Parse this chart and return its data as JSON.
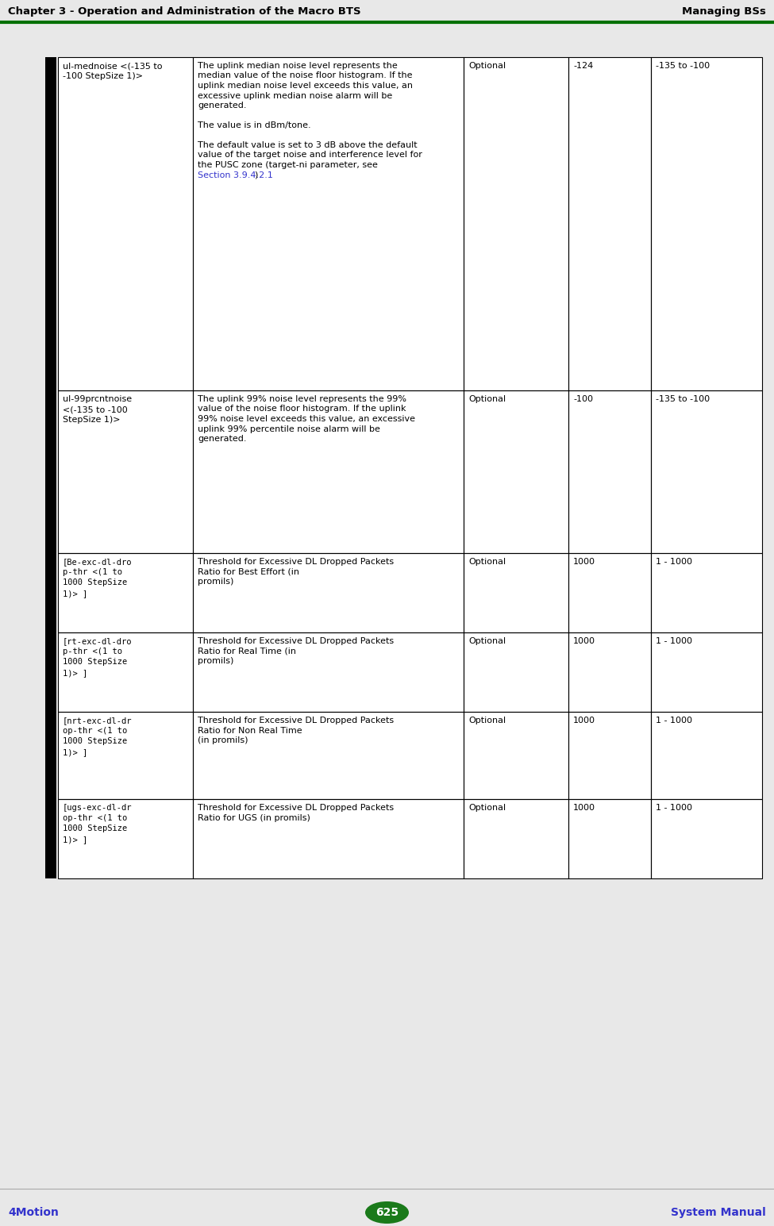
{
  "header_left": "Chapter 3 - Operation and Administration of the Macro BTS",
  "header_right": "Managing BSs",
  "header_line_color": "#007000",
  "footer_left": "4Motion",
  "footer_center": "625",
  "footer_right": "System Manual",
  "footer_circle_color": "#1a7a1a",
  "footer_text_color": "#3333cc",
  "page_bg": "#e8e8e8",
  "table_bg": "#ffffff",
  "rows": [
    {
      "col0": "ul-mednoise <(-135 to\n-100 StepSize 1)>",
      "col0_mono": false,
      "col1_segments": [
        {
          "text": "The uplink median noise level represents the\nmedian value of the noise floor histogram. If the\nuplink median noise level exceeds this value, an\nexcessive uplink median noise alarm will be\ngenerated.",
          "bold": false,
          "color": "#000000"
        },
        {
          "text": "\n\n",
          "bold": false,
          "color": "#000000"
        },
        {
          "text": "The value is in dBm/tone.",
          "bold": false,
          "color": "#000000"
        },
        {
          "text": "\n\n",
          "bold": false,
          "color": "#000000"
        },
        {
          "text": "The default value is set to 3 dB above the default\nvalue of the target noise and interference level for\nthe PUSC zone (target-ni parameter, see\n",
          "bold": false,
          "color": "#000000"
        },
        {
          "text": "Section 3.9.4.2.1",
          "bold": false,
          "color": "#3333cc"
        },
        {
          "text": ")",
          "bold": false,
          "color": "#000000"
        }
      ],
      "col2": "Optional",
      "col3": "-124",
      "col4": "-135 to -100"
    },
    {
      "col0": "ul-99prcntnoise\n<(-135 to -100\nStepSize 1)>",
      "col0_mono": false,
      "col1_segments": [
        {
          "text": "The uplink 99% noise level represents the 99%\nvalue of the noise floor histogram. If the uplink\n99% noise level exceeds this value, an excessive\nuplink 99% percentile noise alarm will be\ngenerated.",
          "bold": false,
          "color": "#000000"
        }
      ],
      "col2": "Optional",
      "col3": "-100",
      "col4": "-135 to -100"
    },
    {
      "col0": "[Be-exc-dl-dro\np-thr <(1 to\n1000 StepSize\n1)> ]",
      "col0_mono": true,
      "col1_segments": [
        {
          "text": "Threshold for Excessive DL Dropped Packets\nRatio for Best Effort (in\npromils)",
          "bold": false,
          "color": "#000000"
        }
      ],
      "col2": "Optional",
      "col3": "1000",
      "col4": "1 - 1000"
    },
    {
      "col0": "[rt-exc-dl-dro\np-thr <(1 to\n1000 StepSize\n1)> ]",
      "col0_mono": true,
      "col1_segments": [
        {
          "text": "Threshold for Excessive DL Dropped Packets\nRatio for Real Time (in\npromils)",
          "bold": false,
          "color": "#000000"
        }
      ],
      "col2": "Optional",
      "col3": "1000",
      "col4": "1 - 1000"
    },
    {
      "col0": "[nrt-exc-dl-dr\nop-thr <(1 to\n1000 StepSize\n1)> ]",
      "col0_mono": true,
      "col1_segments": [
        {
          "text": "Threshold for Excessive DL Dropped Packets\nRatio for Non Real Time\n(in promils)",
          "bold": false,
          "color": "#000000"
        }
      ],
      "col2": "Optional",
      "col3": "1000",
      "col4": "1 - 1000"
    },
    {
      "col0": "[ugs-exc-dl-dr\nop-thr <(1 to\n1000 StepSize\n1)> ]",
      "col0_mono": true,
      "col1_segments": [
        {
          "text": "Threshold for Excessive DL Dropped Packets\nRatio for UGS (in promils)",
          "bold": false,
          "color": "#000000"
        }
      ],
      "col2": "Optional",
      "col3": "1000",
      "col4": "1 - 1000"
    }
  ]
}
